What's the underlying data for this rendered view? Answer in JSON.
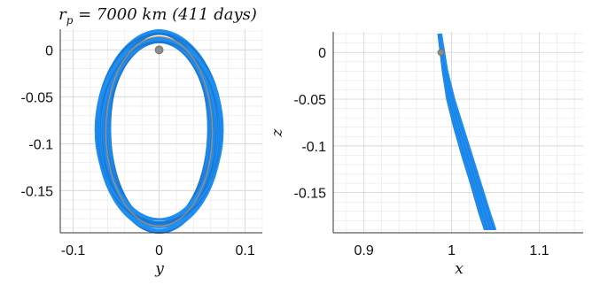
{
  "figure": {
    "colors": {
      "orbit": "#1f8ef1",
      "orbit_dark": "#1978d6",
      "reference": "#d98a3a",
      "body": "#8c8c8c",
      "axis": "#333333",
      "grid": "#e6e6e6"
    }
  },
  "chart_data": [
    {
      "type": "line",
      "title": "r_p = 7000 km (411 days)",
      "title_parts": {
        "symbol": "r",
        "subscript": "p",
        "text": " = 7000 km (411 days)"
      },
      "xlabel": "y",
      "ylabel": "",
      "xlim": [
        -0.115,
        0.12
      ],
      "ylim": [
        -0.195,
        0.022
      ],
      "x_ticks": [
        -0.1,
        0,
        0.1
      ],
      "x_tick_labels": [
        "-0.1",
        "0",
        "0.1"
      ],
      "y_ticks": [
        0,
        -0.05,
        -0.1,
        -0.15
      ],
      "y_tick_labels": [
        "0",
        "-0.05",
        "-0.1",
        "-0.15"
      ],
      "grid": true,
      "series": [
        {
          "role": "orbit-band",
          "shape": "ellipse-family",
          "center": [
            0.0,
            -0.086
          ],
          "semi_axis_x_range": [
            0.057,
            0.074
          ],
          "semi_axis_y_range": [
            0.096,
            0.106
          ],
          "center_y_range": [
            -0.089,
            -0.084
          ]
        },
        {
          "role": "reference-orbit",
          "shape": "ellipse",
          "center": [
            0.0,
            -0.087
          ],
          "semi_axis_x": 0.062,
          "semi_axis_y": 0.101
        }
      ],
      "points": [
        {
          "role": "body",
          "x": 0.0,
          "y": 0.0
        }
      ]
    },
    {
      "type": "line",
      "title": "",
      "xlabel": "x",
      "ylabel": "z",
      "xlim": [
        0.865,
        1.15
      ],
      "ylim": [
        -0.193,
        0.022
      ],
      "x_ticks": [
        0.9,
        1,
        1.1
      ],
      "x_tick_labels": [
        "0.9",
        "1",
        "1.1"
      ],
      "y_ticks": [
        0,
        -0.05,
        -0.1,
        -0.15
      ],
      "y_tick_labels": [
        "0",
        "-0.05",
        "-0.1",
        "-0.15"
      ],
      "grid": true,
      "series": [
        {
          "role": "orbit-band-left-edge",
          "x": [
            0.985,
            0.99,
            0.995,
            1.003,
            1.012,
            1.022,
            1.031,
            1.038
          ],
          "y": [
            0.02,
            -0.02,
            -0.05,
            -0.08,
            -0.11,
            -0.14,
            -0.17,
            -0.19
          ]
        },
        {
          "role": "orbit-band-right-edge",
          "x": [
            0.988,
            0.995,
            1.003,
            1.013,
            1.023,
            1.033,
            1.043,
            1.05
          ],
          "y": [
            0.02,
            -0.02,
            -0.05,
            -0.08,
            -0.11,
            -0.14,
            -0.17,
            -0.19
          ]
        }
      ],
      "points": [
        {
          "role": "body",
          "x": 0.9878,
          "y": 0.0
        }
      ]
    }
  ]
}
